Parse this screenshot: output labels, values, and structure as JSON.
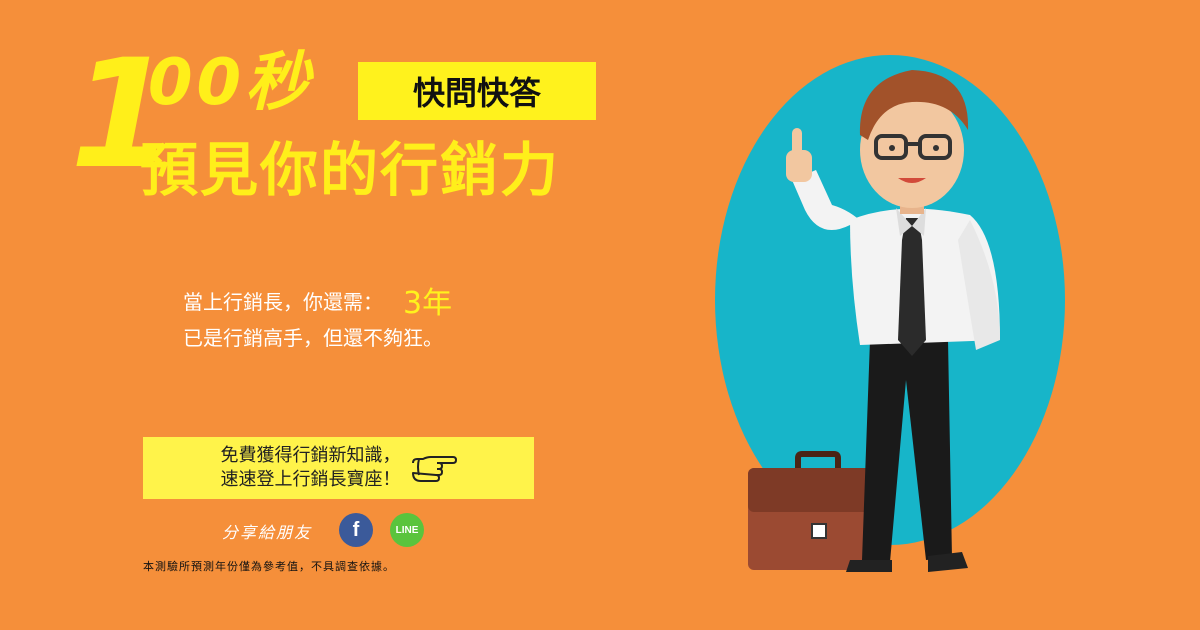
{
  "title": {
    "number_lead": "1",
    "number_rest": "00秒",
    "tag": "快問快答",
    "headline": "預見你的行銷力"
  },
  "result": {
    "line1": "當上行銷長，你還需：",
    "years": "3年",
    "line2": "已是行銷高手，但還不夠狂。"
  },
  "cta": {
    "line1": "免費獲得行銷新知識，",
    "line2": "速速登上行銷長寶座！"
  },
  "share": {
    "label": "分享給朋友",
    "facebook": "f",
    "line": "LINE"
  },
  "disclaimer": "本測驗所預測年份僅為參考值，不具調查依據。",
  "colors": {
    "background": "#f58f3a",
    "accent_yellow": "#fff21d",
    "circle": "#17b5c9"
  }
}
